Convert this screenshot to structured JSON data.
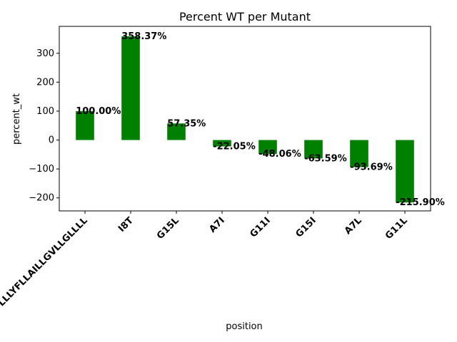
{
  "chart_data": {
    "type": "bar",
    "title": "Percent WT per Mutant",
    "xlabel": "position",
    "ylabel": "percent_wt",
    "categories": [
      "LLLYFLLAILLGVLLGLLLL",
      "I8T",
      "G15L",
      "A7I",
      "G11I",
      "G15I",
      "A7L",
      "G11L"
    ],
    "values": [
      100.0,
      358.37,
      57.35,
      -22.05,
      -48.06,
      -63.59,
      -93.69,
      -215.9
    ],
    "value_labels": [
      "100.00%",
      "358.37%",
      "57.35%",
      "-22.05%",
      "-48.06%",
      "-63.59%",
      "-93.69%",
      "-215.90%"
    ],
    "yticks": [
      -200,
      -100,
      0,
      100,
      200,
      300
    ],
    "ylim": [
      -245,
      393
    ],
    "grid": false,
    "legend": "none",
    "bar_color": "#008000",
    "tick_label_rotation": 45
  }
}
